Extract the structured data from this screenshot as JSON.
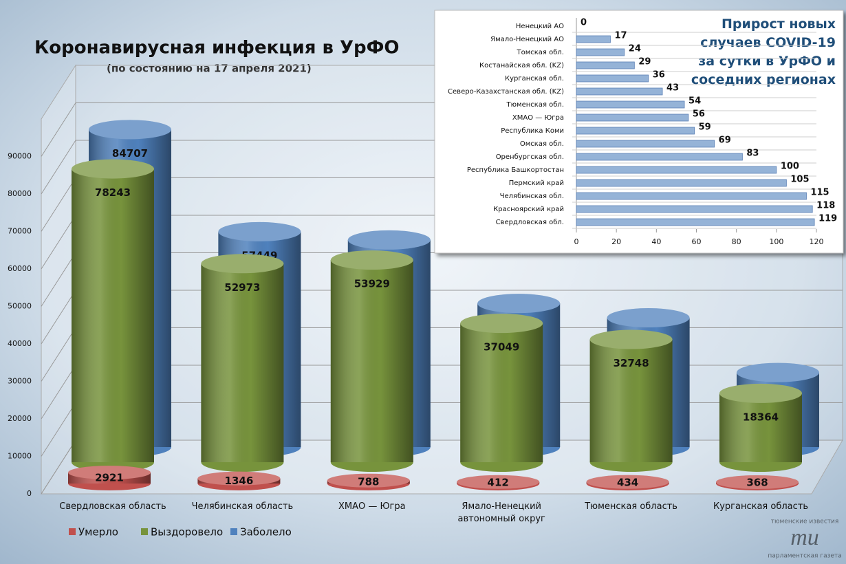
{
  "chart_data": [
    {
      "type": "cylinder",
      "title": "Коронавирусная инфекция в УрФО",
      "subtitle": "(по состоянию на 17 апреля 2021)",
      "categories": [
        "Свердловская область",
        "Челябинская область",
        "ХМАО — Югра",
        "Ямало-Ненецкий автономный округ",
        "Тюменская область",
        "Курганская область"
      ],
      "series": [
        {
          "name": "Умерло",
          "color": "#c0504d",
          "values": [
            2921,
            1346,
            788,
            412,
            434,
            368
          ]
        },
        {
          "name": "Выздоровело",
          "color": "#77933c",
          "values": [
            78243,
            52973,
            53929,
            37049,
            32748,
            18364
          ]
        },
        {
          "name": "Заболело",
          "color": "#4f81bd",
          "values": [
            84707,
            57449,
            55254,
            38320,
            34488,
            19887
          ]
        }
      ],
      "ylim": [
        0,
        100000
      ],
      "yticks": [
        0,
        10000,
        20000,
        30000,
        40000,
        50000,
        60000,
        70000,
        80000,
        90000
      ],
      "grid": true,
      "legend": "bottom-left"
    },
    {
      "type": "barh",
      "title": "Прирост новых случаев COVID-19 за сутки в УрФО и соседних регионах",
      "categories": [
        "Ненецкий АО",
        "Ямало-Ненецкий АО",
        "Томская обл.",
        "Костанайская обл. (KZ)",
        "Курганская обл.",
        "Северо-Казахстанская обл. (KZ)",
        "Тюменская обл.",
        "ХМАО — Югра",
        "Республика Коми",
        "Омская обл.",
        "Оренбургская обл.",
        "Республика Башкортостан",
        "Пермский край",
        "Челябинская обл.",
        "Красноярский край",
        "Свердловская обл."
      ],
      "values": [
        0,
        17,
        24,
        29,
        36,
        43,
        54,
        56,
        59,
        69,
        83,
        100,
        105,
        115,
        118,
        119
      ],
      "color": "#95b3d7",
      "xlim": [
        0,
        120
      ],
      "xticks": [
        0,
        20,
        40,
        60,
        80,
        100,
        120
      ]
    }
  ],
  "watermark": {
    "top": "тюменские известия",
    "bottom": "парламентская газета"
  }
}
